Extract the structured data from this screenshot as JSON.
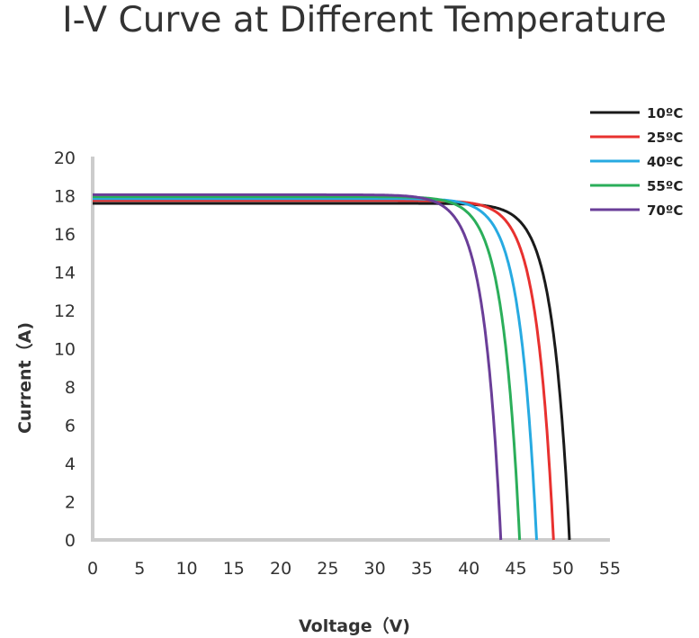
{
  "chart_data": {
    "type": "line",
    "title": "I-V Curve at Different Temperature",
    "xlabel": "Voltage（V)",
    "ylabel": "Current（A)",
    "xlim": [
      0,
      55
    ],
    "ylim": [
      0,
      20
    ],
    "xticks": [
      0,
      5,
      10,
      15,
      20,
      25,
      30,
      35,
      40,
      45,
      50,
      55
    ],
    "yticks": [
      0,
      2,
      4,
      6,
      8,
      10,
      12,
      14,
      16,
      18,
      20
    ],
    "legend_position": "top-right",
    "grid": false,
    "series": [
      {
        "name": "10ºC",
        "color": "#1a1a1a",
        "isc": 17.6,
        "voc": 50.7,
        "knee": 1.8
      },
      {
        "name": "25ºC",
        "color": "#e8312f",
        "isc": 17.75,
        "voc": 49.0,
        "knee": 1.8
      },
      {
        "name": "40ºC",
        "color": "#27aae1",
        "isc": 17.85,
        "voc": 47.2,
        "knee": 1.8
      },
      {
        "name": "55ºC",
        "color": "#2bae5a",
        "isc": 17.95,
        "voc": 45.4,
        "knee": 1.8
      },
      {
        "name": "70ºC",
        "color": "#6a3e98",
        "isc": 18.05,
        "voc": 43.4,
        "knee": 1.8
      }
    ]
  }
}
